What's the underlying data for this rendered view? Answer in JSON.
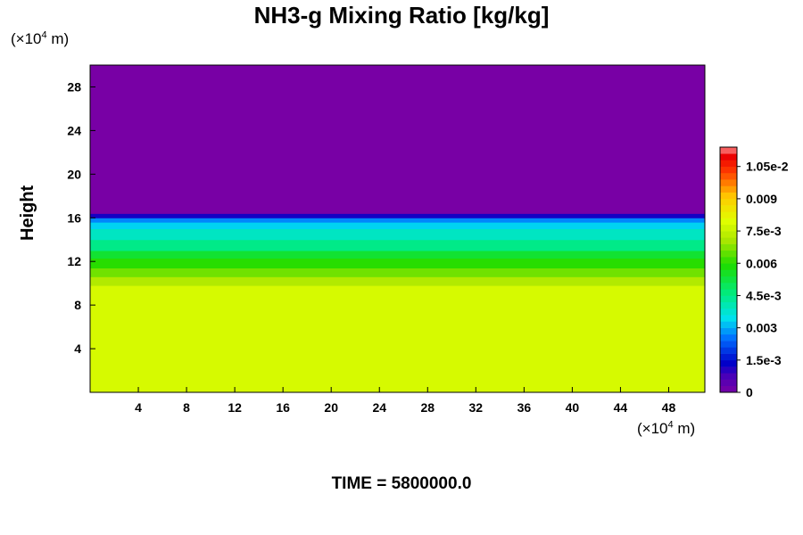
{
  "chart_data": {
    "type": "heatmap",
    "title": "NH3-g Mixing Ratio [kg/kg]",
    "ylabel": "Height",
    "xunit_prefix": "(×10",
    "xunit_exp": "4",
    "xunit_suffix": " m)",
    "yunit_prefix": "(×10",
    "yunit_exp": "4",
    "yunit_suffix": " m)",
    "xlim": [
      0,
      51
    ],
    "ylim": [
      0,
      30
    ],
    "x_ticks": [
      "4",
      "8",
      "12",
      "16",
      "20",
      "24",
      "28",
      "32",
      "36",
      "40",
      "44",
      "48"
    ],
    "y_ticks": [
      "4",
      "8",
      "12",
      "16",
      "20",
      "24",
      "28"
    ],
    "colorbar": {
      "min": 0,
      "max": 0.0114,
      "tick_values": [
        0,
        0.0015,
        0.003,
        0.0045,
        0.006,
        0.0075,
        0.009,
        0.0105
      ],
      "tick_labels": [
        "0",
        "1.5e-3",
        "0.003",
        "4.5e-3",
        "0.006",
        "7.5e-3",
        "0.009",
        "1.05e-2"
      ]
    },
    "field_profile": [
      {
        "height": 0,
        "value": 0.0078
      },
      {
        "height": 9.0,
        "value": 0.0078
      },
      {
        "height": 9.8,
        "value": 0.0072
      },
      {
        "height": 10.6,
        "value": 0.0066
      },
      {
        "height": 11.4,
        "value": 0.006
      },
      {
        "height": 12.3,
        "value": 0.0054
      },
      {
        "height": 13.0,
        "value": 0.0045
      },
      {
        "height": 14.0,
        "value": 0.0039
      },
      {
        "height": 15.0,
        "value": 0.0033
      },
      {
        "height": 15.6,
        "value": 0.0027
      },
      {
        "height": 16.0,
        "value": 0.0012
      },
      {
        "height": 16.4,
        "value": 0.0
      }
    ]
  },
  "footer": {
    "time_label": "TIME = 5800000.0"
  }
}
